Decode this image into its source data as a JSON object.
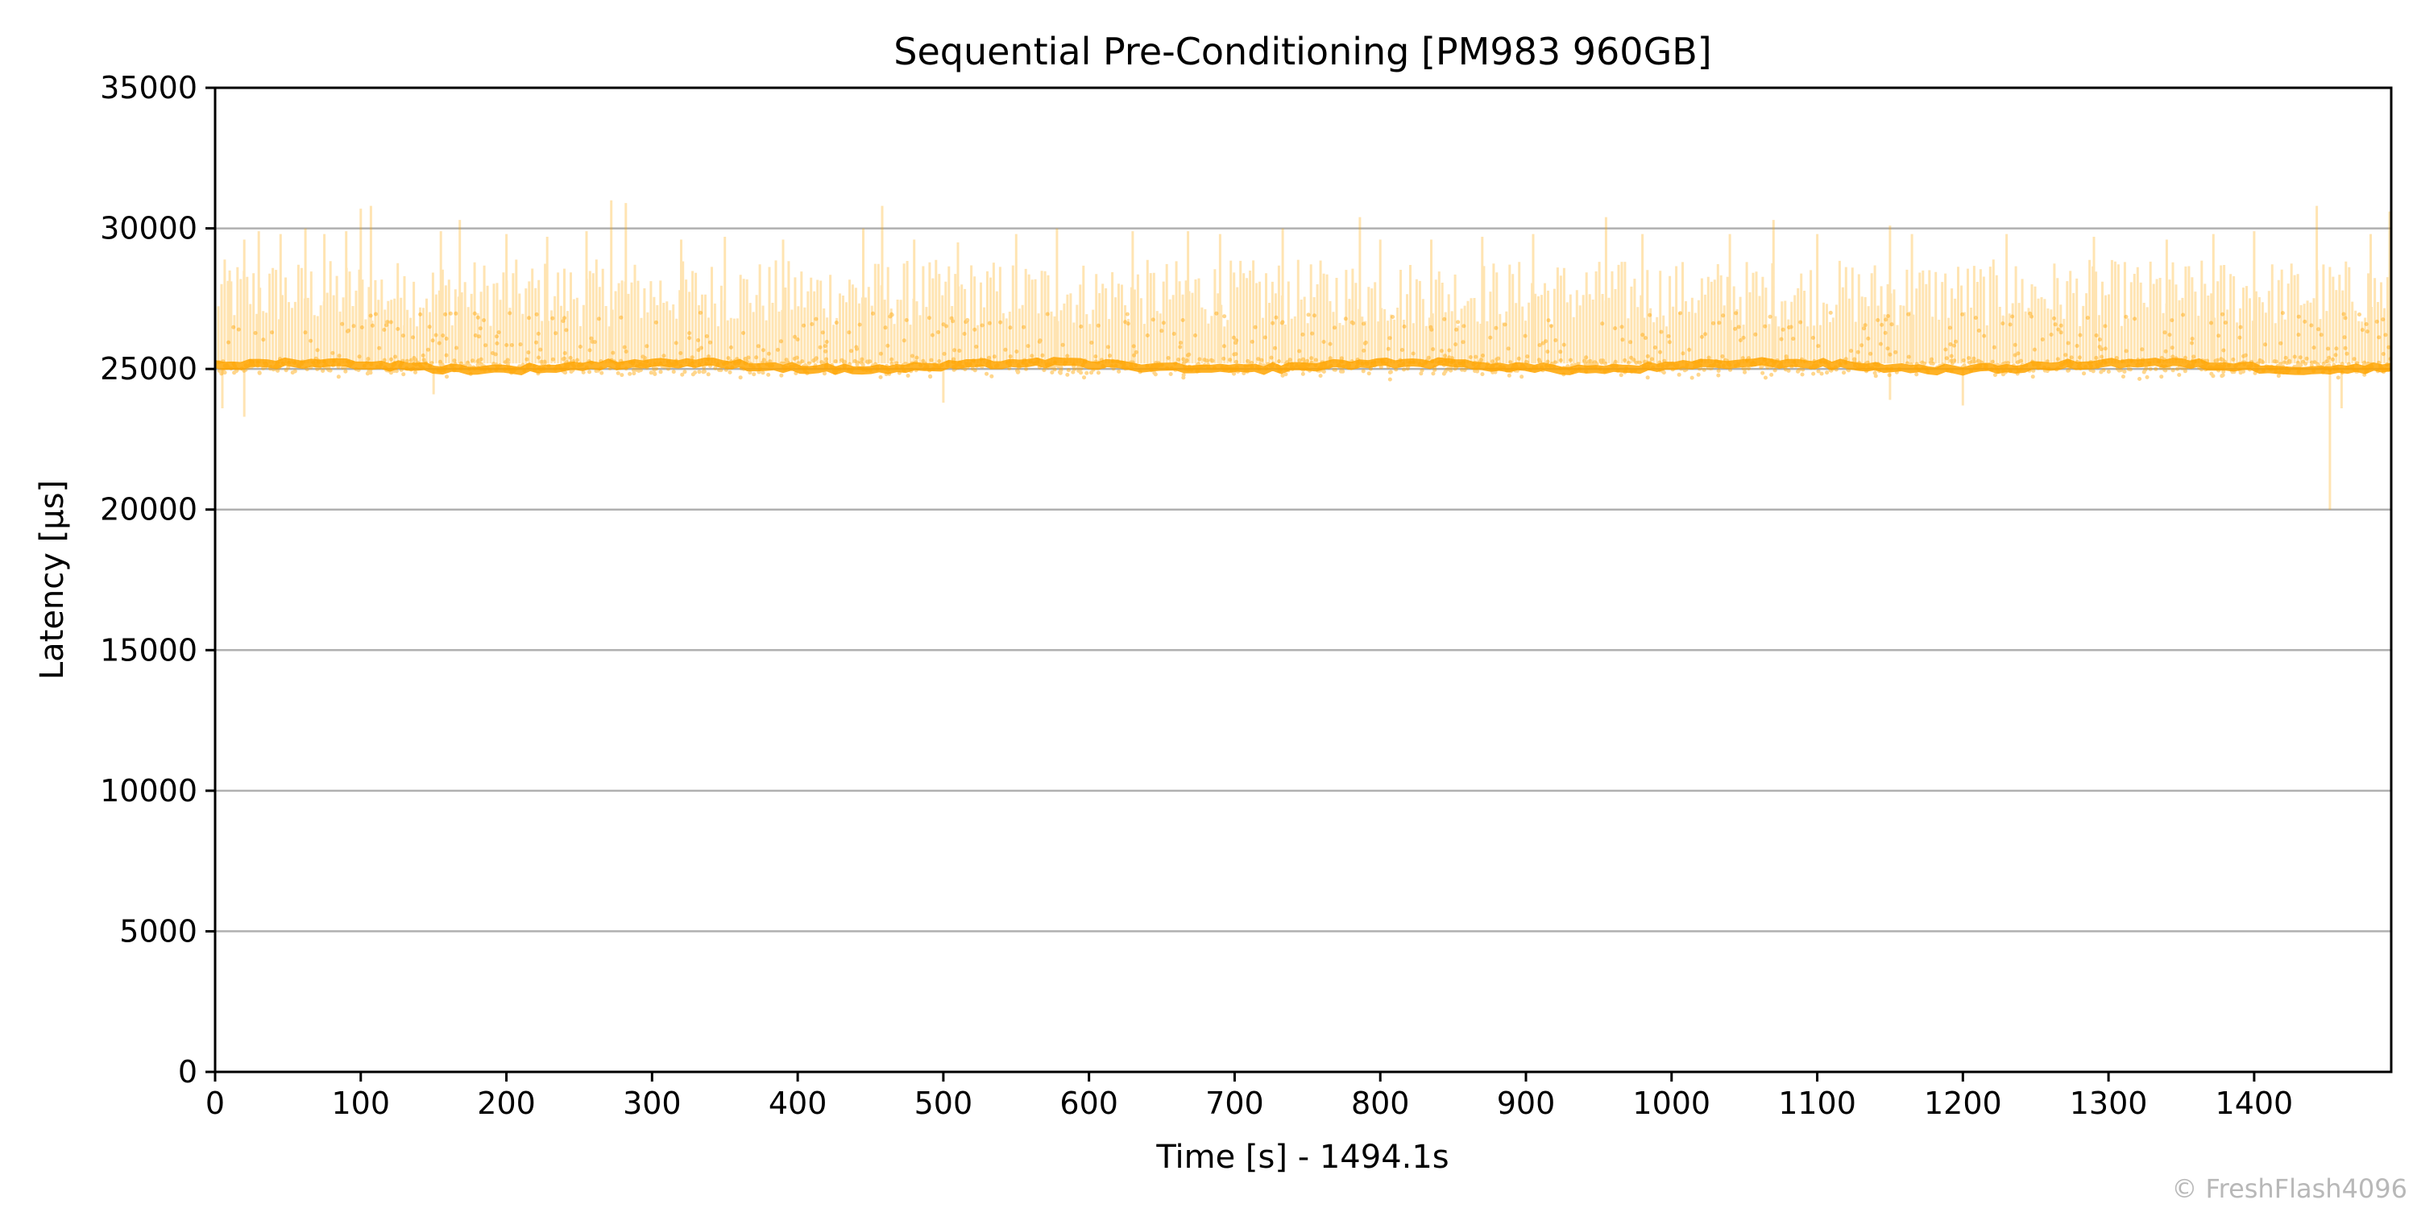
{
  "chart_data": {
    "type": "scatter",
    "title": "Sequential Pre-Conditioning [PM983 960GB]",
    "xlabel": "Time [s] - 1494.1s",
    "ylabel": "Latency [µs]",
    "xlim": [
      0,
      1494.1
    ],
    "ylim": [
      0,
      35000
    ],
    "xticks": [
      "0",
      "100",
      "200",
      "300",
      "400",
      "500",
      "600",
      "700",
      "800",
      "900",
      "1000",
      "1100",
      "1200",
      "1300",
      "1400"
    ],
    "yticks": [
      "0",
      "5000",
      "10000",
      "15000",
      "20000",
      "25000",
      "30000",
      "35000"
    ],
    "grid": "horizontal",
    "legend": "none",
    "series": [
      {
        "color": "#FFA500",
        "median_latency": 25100,
        "typical_range": [
          24200,
          27000
        ],
        "peak_latency": [
          [
            10,
            28500
          ],
          [
            20,
            29600
          ],
          [
            30,
            29900
          ],
          [
            45,
            29800
          ],
          [
            62,
            30000
          ],
          [
            75,
            29800
          ],
          [
            90,
            29900
          ],
          [
            100,
            30700
          ],
          [
            107,
            30800
          ],
          [
            130,
            28300
          ],
          [
            155,
            29900
          ],
          [
            168,
            30300
          ],
          [
            200,
            29800
          ],
          [
            228,
            29700
          ],
          [
            255,
            29900
          ],
          [
            272,
            31000
          ],
          [
            282,
            30900
          ],
          [
            320,
            29600
          ],
          [
            350,
            29700
          ],
          [
            390,
            29600
          ],
          [
            445,
            30000
          ],
          [
            458,
            30800
          ],
          [
            480,
            29600
          ],
          [
            510,
            29500
          ],
          [
            550,
            29800
          ],
          [
            578,
            30000
          ],
          [
            630,
            29900
          ],
          [
            668,
            29900
          ],
          [
            690,
            29800
          ],
          [
            733,
            30000
          ],
          [
            786,
            30400
          ],
          [
            800,
            29600
          ],
          [
            835,
            29600
          ],
          [
            870,
            29700
          ],
          [
            905,
            29800
          ],
          [
            955,
            30400
          ],
          [
            980,
            29800
          ],
          [
            1040,
            29800
          ],
          [
            1070,
            30300
          ],
          [
            1100,
            29800
          ],
          [
            1150,
            30100
          ],
          [
            1165,
            29800
          ],
          [
            1230,
            29800
          ],
          [
            1290,
            29700
          ],
          [
            1340,
            29600
          ],
          [
            1372,
            29800
          ],
          [
            1400,
            29900
          ],
          [
            1443,
            30800
          ],
          [
            1480,
            29800
          ],
          [
            1493,
            30600
          ]
        ],
        "min_latency": [
          [
            5,
            23600
          ],
          [
            20,
            23300
          ],
          [
            150,
            24100
          ],
          [
            500,
            23800
          ],
          [
            1150,
            23900
          ],
          [
            1200,
            23700
          ],
          [
            1452,
            20000
          ],
          [
            1460,
            23600
          ]
        ]
      }
    ],
    "watermark": "© FreshFlash4096"
  }
}
